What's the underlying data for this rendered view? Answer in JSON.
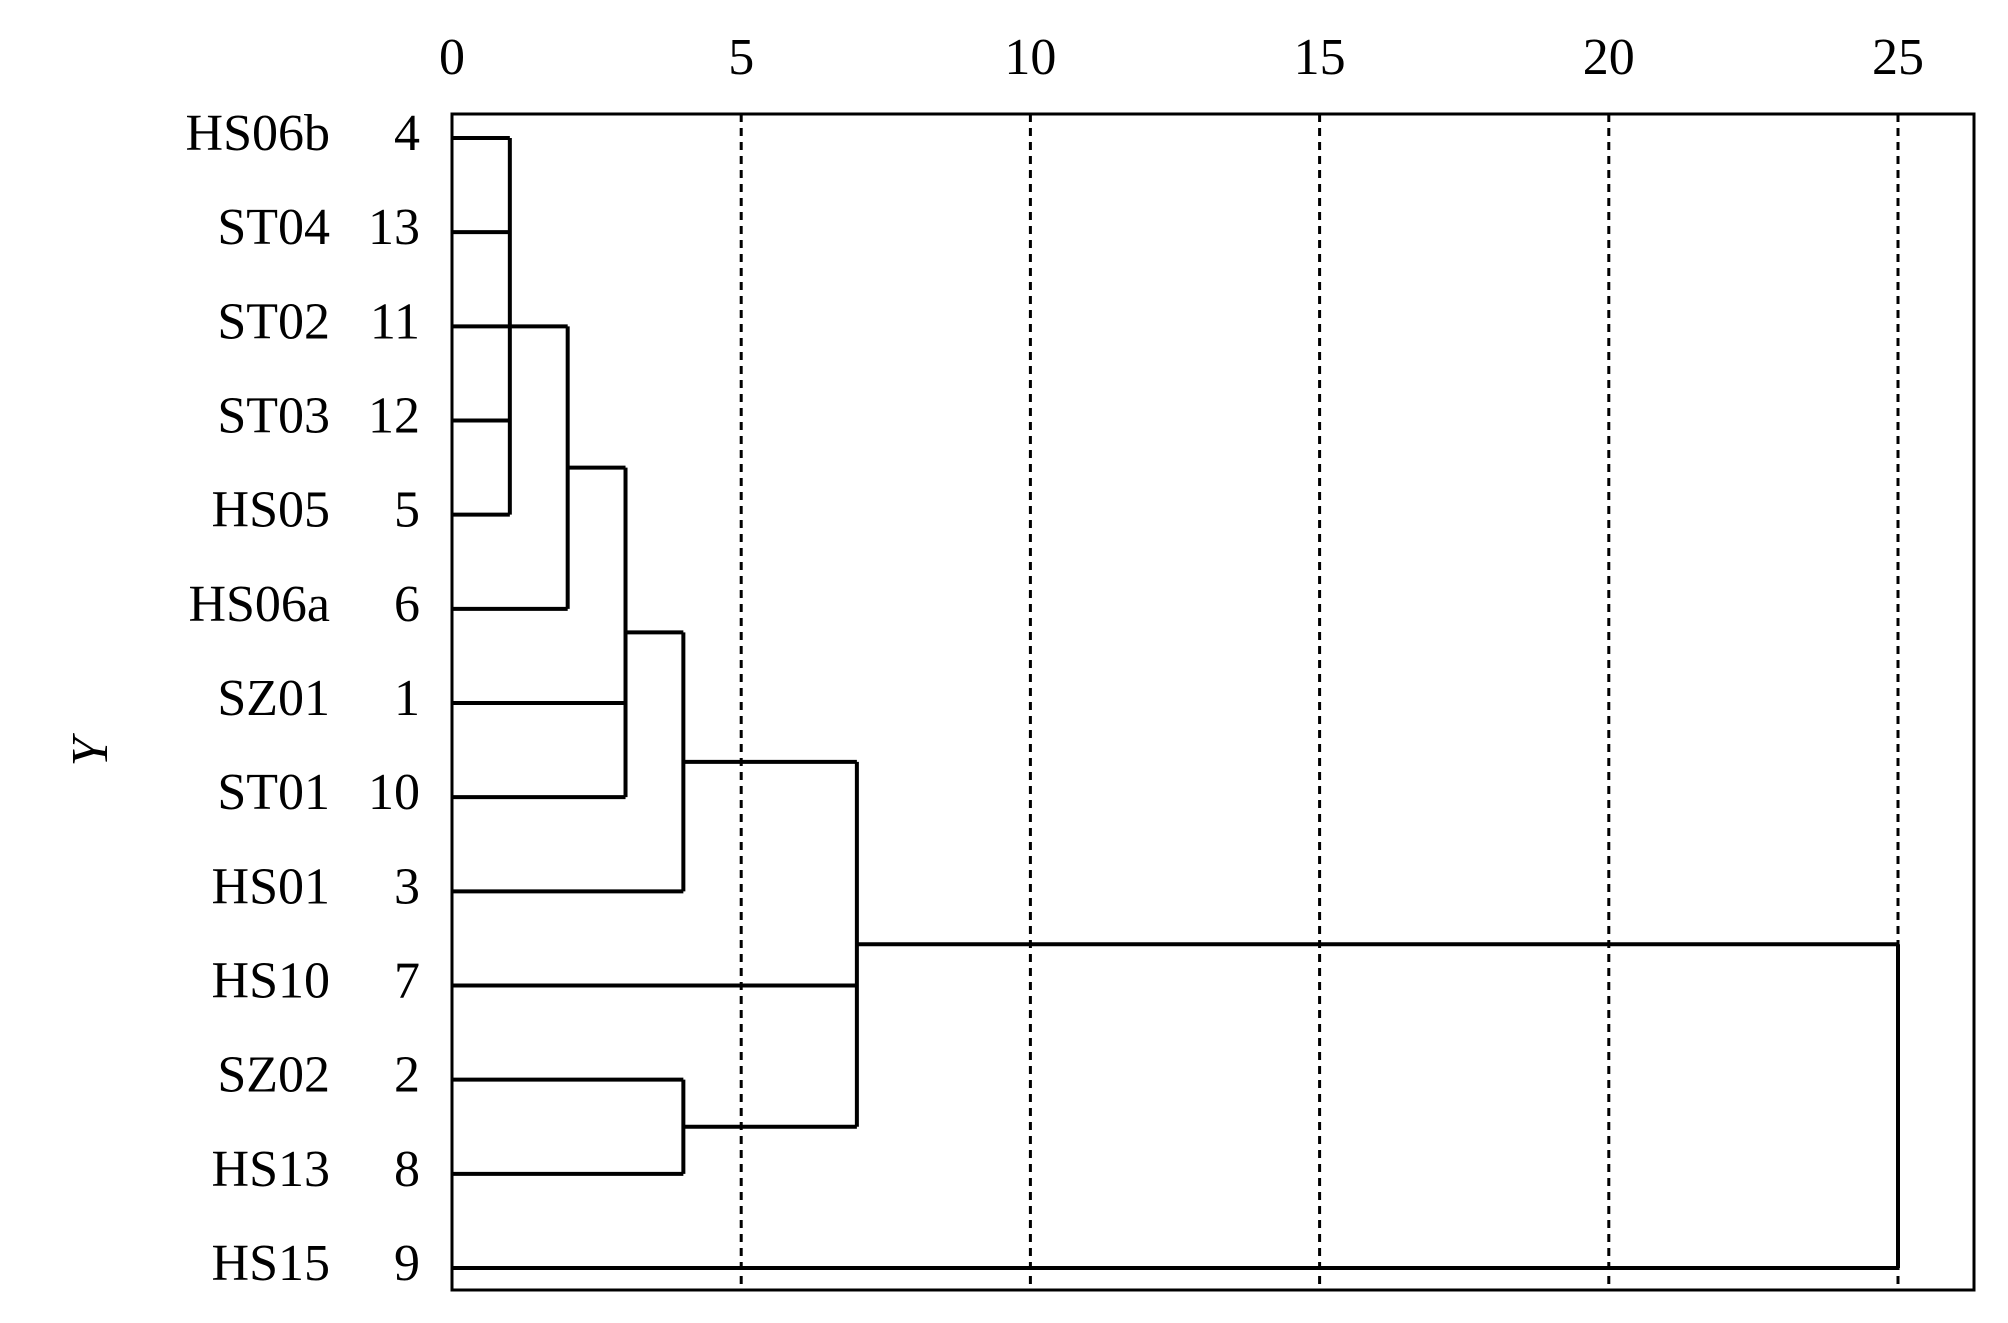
{
  "chart_data": {
    "type": "dendrogram",
    "y_label": "Y",
    "labels": [
      "HS06b",
      "ST04",
      "ST02",
      "ST03",
      "HS05",
      "HS06a",
      "SZ01",
      "ST01",
      "HS01",
      "HS10",
      "SZ02",
      "HS13",
      "HS15"
    ],
    "ids": [
      4,
      13,
      11,
      12,
      5,
      6,
      1,
      10,
      3,
      7,
      2,
      8,
      9
    ],
    "merges": [
      {
        "children": [
          0,
          1,
          2,
          3,
          4
        ],
        "height": 1
      },
      {
        "children": [
          13,
          5
        ],
        "height": 2
      },
      {
        "children": [
          14,
          6,
          7
        ],
        "height": 3
      },
      {
        "children": [
          15,
          8
        ],
        "height": 4
      },
      {
        "children": [
          10,
          11
        ],
        "height": 4
      },
      {
        "children": [
          16,
          9,
          17
        ],
        "height": 7
      },
      {
        "children": [
          18,
          12
        ],
        "height": 25
      }
    ],
    "xlim": [
      0,
      25
    ],
    "xticks": [
      0,
      5,
      10,
      15,
      20,
      25
    ],
    "grid": true,
    "color": "#000000"
  }
}
